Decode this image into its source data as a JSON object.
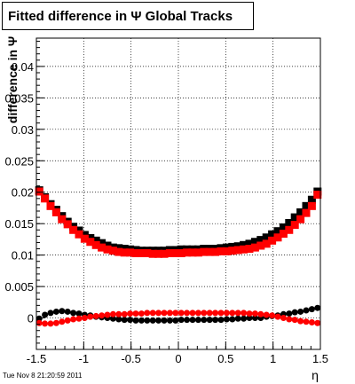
{
  "title": "Fitted difference in Ψ   Global Tracks",
  "footer": "Tue Nov  8 21:20:59 2011",
  "chart_data": {
    "type": "scatter",
    "title": "Fitted difference in Ψ   Global Tracks",
    "xlabel": "η",
    "ylabel": "difference in Ψ",
    "xlim": [
      -1.5,
      1.5
    ],
    "ylim": [
      -0.005,
      0.0445
    ],
    "grid": true,
    "xticks": [
      "-1.5",
      "-1",
      "-0.5",
      "0",
      "0.5",
      "1",
      "1.5"
    ],
    "xtick_values": [
      -1.5,
      -1,
      -0.5,
      0,
      0.5,
      1,
      1.5
    ],
    "yticks": [
      "0",
      "0.005",
      "0.01",
      "0.015",
      "0.02",
      "0.025",
      "0.03",
      "0.035",
      "0.04"
    ],
    "ytick_values": [
      0,
      0.005,
      0.01,
      0.015,
      0.02,
      0.025,
      0.03,
      0.035,
      0.04
    ],
    "x": [
      -1.47,
      -1.41,
      -1.35,
      -1.29,
      -1.23,
      -1.17,
      -1.11,
      -1.05,
      -0.99,
      -0.93,
      -0.87,
      -0.81,
      -0.75,
      -0.69,
      -0.63,
      -0.57,
      -0.51,
      -0.45,
      -0.39,
      -0.33,
      -0.27,
      -0.21,
      -0.15,
      -0.09,
      -0.03,
      0.03,
      0.09,
      0.15,
      0.21,
      0.27,
      0.33,
      0.39,
      0.45,
      0.51,
      0.57,
      0.63,
      0.69,
      0.75,
      0.81,
      0.87,
      0.93,
      0.99,
      1.05,
      1.11,
      1.17,
      1.23,
      1.29,
      1.35,
      1.41,
      1.47
    ],
    "series": [
      {
        "color": "#000000",
        "marker": "square",
        "values": [
          0.0203,
          0.0192,
          0.0181,
          0.0172,
          0.0162,
          0.0153,
          0.0145,
          0.0139,
          0.0132,
          0.0127,
          0.0123,
          0.0119,
          0.0115,
          0.0112,
          0.0111,
          0.011,
          0.0109,
          0.0108,
          0.0107,
          0.0107,
          0.0107,
          0.0107,
          0.0107,
          0.0108,
          0.0108,
          0.0109,
          0.0109,
          0.0109,
          0.0109,
          0.011,
          0.011,
          0.011,
          0.0111,
          0.0112,
          0.0113,
          0.0114,
          0.0116,
          0.0118,
          0.0121,
          0.0124,
          0.0128,
          0.0133,
          0.0138,
          0.0144,
          0.0151,
          0.016,
          0.0168,
          0.0178,
          0.0188,
          0.0201
        ]
      },
      {
        "color": "#000000",
        "marker": "circle",
        "values": [
          -0.0001,
          0.0005,
          0.0008,
          0.001,
          0.0011,
          0.001,
          0.0008,
          0.0007,
          0.0005,
          0.0004,
          0.0002,
          0.0001,
          0.0,
          -0.0001,
          -0.0002,
          -0.0003,
          -0.0003,
          -0.0004,
          -0.0004,
          -0.0004,
          -0.0004,
          -0.0004,
          -0.0004,
          -0.0004,
          -0.0004,
          -0.0003,
          -0.0003,
          -0.0003,
          -0.0003,
          -0.0003,
          -0.0003,
          -0.0003,
          -0.0003,
          -0.0002,
          -0.0002,
          -0.0001,
          -0.0001,
          0.0,
          0.0,
          0.0,
          0.0002,
          0.0003,
          0.0004,
          0.0006,
          0.0007,
          0.0009,
          0.001,
          0.0012,
          0.0014,
          0.0016
        ]
      },
      {
        "color": "#ff0000",
        "marker": "square",
        "values": [
          0.0201,
          0.019,
          0.0178,
          0.0168,
          0.0157,
          0.0149,
          0.014,
          0.0133,
          0.0126,
          0.0121,
          0.0116,
          0.0112,
          0.0109,
          0.0107,
          0.0105,
          0.0104,
          0.0104,
          0.0103,
          0.0103,
          0.0103,
          0.0102,
          0.0102,
          0.0102,
          0.0103,
          0.0103,
          0.0103,
          0.0104,
          0.0104,
          0.0104,
          0.0105,
          0.0105,
          0.0105,
          0.0106,
          0.0106,
          0.0107,
          0.0108,
          0.0109,
          0.011,
          0.0112,
          0.0115,
          0.0118,
          0.0123,
          0.0128,
          0.0134,
          0.014,
          0.0148,
          0.0157,
          0.0167,
          0.0178,
          0.0196
        ]
      },
      {
        "color": "#ff0000",
        "marker": "circle",
        "values": [
          -0.0008,
          -0.0009,
          -0.0009,
          -0.0008,
          -0.0006,
          -0.0004,
          -0.0002,
          -0.0001,
          0.0,
          0.0002,
          0.0003,
          0.0004,
          0.0005,
          0.0006,
          0.0006,
          0.0006,
          0.0007,
          0.0007,
          0.0007,
          0.0008,
          0.0008,
          0.0008,
          0.0008,
          0.0008,
          0.0008,
          0.0008,
          0.0008,
          0.0008,
          0.0008,
          0.0008,
          0.0008,
          0.0008,
          0.0008,
          0.0008,
          0.0008,
          0.0008,
          0.0008,
          0.0007,
          0.0007,
          0.0006,
          0.0005,
          0.0004,
          0.0002,
          0.0,
          -0.0002,
          -0.0003,
          -0.0005,
          -0.0006,
          -0.0007,
          -0.0008
        ]
      }
    ]
  }
}
